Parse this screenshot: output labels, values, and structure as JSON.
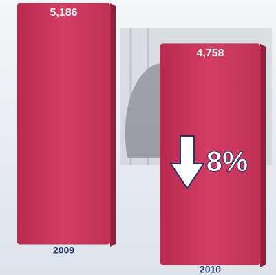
{
  "chart_data": {
    "type": "bar",
    "categories": [
      "2009",
      "2010"
    ],
    "values": [
      5186,
      4758
    ],
    "value_labels": [
      "5,186",
      "4,758"
    ],
    "color": "#c8325a",
    "annotation": "8%"
  }
}
